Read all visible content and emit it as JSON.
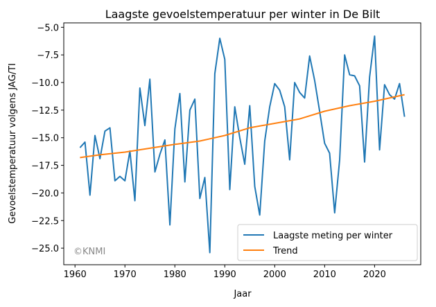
{
  "chart_data": {
    "type": "line",
    "title": "Laagste gevoelstemperatuur per winter in De Bilt",
    "xlabel": "Jaar",
    "ylabel": "Gevoelstemperatuur volgens JAG/TI",
    "xlim": [
      1957.75,
      2029.25
    ],
    "ylim": [
      -26.5,
      -4.6
    ],
    "xticks": [
      1960,
      1970,
      1980,
      1990,
      2000,
      2010,
      2020
    ],
    "xtick_labels": [
      "1960",
      "1970",
      "1980",
      "1990",
      "2000",
      "2010",
      "2020"
    ],
    "yticks": [
      -25.0,
      -22.5,
      -20.0,
      -17.5,
      -15.0,
      -12.5,
      -10.0,
      -7.5,
      -5.0
    ],
    "ytick_labels": [
      "−25.0",
      "−22.5",
      "−20.0",
      "−17.5",
      "−15.0",
      "−12.5",
      "−10.0",
      "−7.5",
      "−5.0"
    ],
    "grid": false,
    "legend_position": "lower-right",
    "annotation": "©KNMI",
    "series": [
      {
        "name": "Laagste meting per winter",
        "color": "#1f77b4",
        "x": [
          1961,
          1962,
          1963,
          1964,
          1965,
          1966,
          1967,
          1968,
          1969,
          1970,
          1971,
          1972,
          1973,
          1974,
          1975,
          1976,
          1977,
          1978,
          1979,
          1980,
          1981,
          1982,
          1983,
          1984,
          1985,
          1986,
          1987,
          1988,
          1989,
          1990,
          1991,
          1992,
          1993,
          1994,
          1995,
          1996,
          1997,
          1998,
          1999,
          2000,
          2001,
          2002,
          2003,
          2004,
          2005,
          2006,
          2007,
          2008,
          2009,
          2010,
          2011,
          2012,
          2013,
          2014,
          2015,
          2016,
          2017,
          2018,
          2019,
          2020,
          2021,
          2022,
          2023,
          2024,
          2025,
          2026
        ],
        "y": [
          -15.9,
          -15.4,
          -20.2,
          -14.8,
          -16.9,
          -14.4,
          -14.1,
          -18.9,
          -18.5,
          -18.9,
          -16.2,
          -20.7,
          -10.5,
          -13.9,
          -9.7,
          -18.1,
          -16.5,
          -15.2,
          -22.9,
          -14.2,
          -11.0,
          -19.0,
          -12.5,
          -11.5,
          -20.5,
          -18.6,
          -25.4,
          -9.2,
          -6.0,
          -7.9,
          -19.7,
          -12.2,
          -15.0,
          -17.4,
          -12.1,
          -19.4,
          -22.0,
          -15.3,
          -12.2,
          -10.1,
          -10.7,
          -12.2,
          -17.0,
          -10.0,
          -10.9,
          -11.4,
          -7.6,
          -9.8,
          -12.6,
          -15.5,
          -16.4,
          -21.8,
          -17.0,
          -7.5,
          -9.3,
          -9.4,
          -10.3,
          -17.2,
          -9.5,
          -5.8,
          -16.1,
          -10.2,
          -11.1,
          -11.5,
          -10.1,
          -13.1
        ]
      },
      {
        "name": "Trend",
        "color": "#ff7f0e",
        "x": [
          1961,
          1965,
          1970,
          1975,
          1980,
          1985,
          1987,
          1990,
          1995,
          2000,
          2005,
          2010,
          2015,
          2020,
          2026
        ],
        "y": [
          -16.8,
          -16.55,
          -16.3,
          -15.95,
          -15.6,
          -15.3,
          -15.1,
          -14.8,
          -14.1,
          -13.7,
          -13.3,
          -12.6,
          -12.1,
          -11.7,
          -11.1
        ]
      }
    ]
  }
}
